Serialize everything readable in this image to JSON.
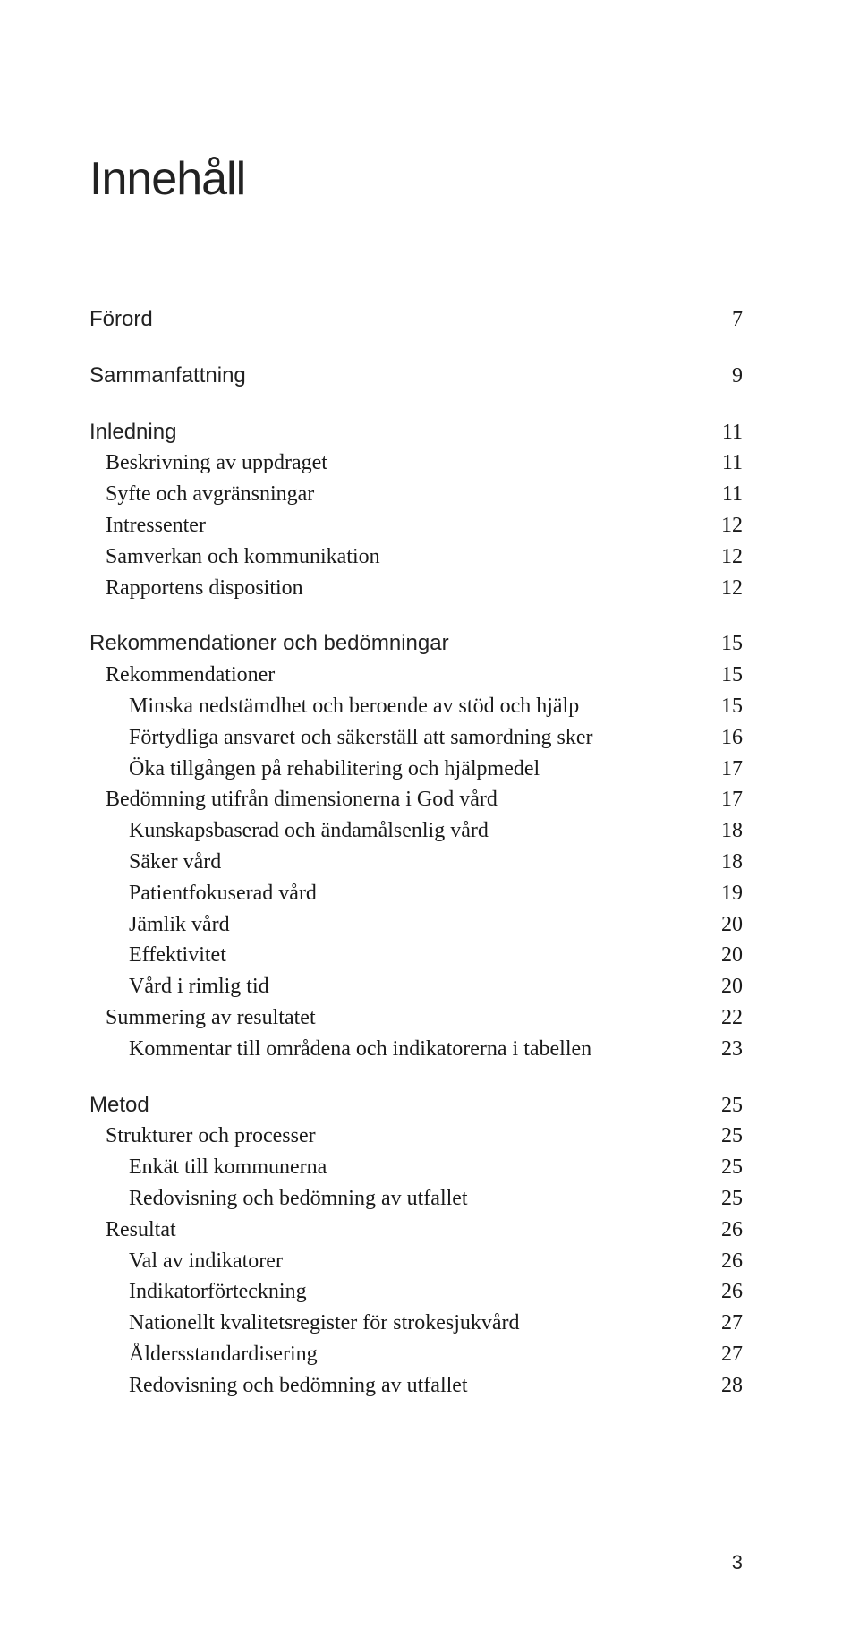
{
  "document": {
    "title": "Innehåll",
    "page_number": "3",
    "colors": {
      "background": "#ffffff",
      "text": "#1a1a1a",
      "title": "#222222"
    },
    "typography": {
      "title_font": "Verdana",
      "title_size_pt": 38,
      "section_font": "Verdana",
      "section_size_pt": 18,
      "body_font": "Georgia",
      "body_size_pt": 18
    }
  },
  "toc": [
    {
      "label": "Förord",
      "page": "7",
      "level": 0,
      "gap_before": false
    },
    {
      "label": "Sammanfattning",
      "page": "9",
      "level": 0,
      "gap_before": true
    },
    {
      "label": "Inledning",
      "page": "11",
      "level": 0,
      "gap_before": true
    },
    {
      "label": "Beskrivning av uppdraget",
      "page": "11",
      "level": 1
    },
    {
      "label": "Syfte och avgränsningar",
      "page": "11",
      "level": 1
    },
    {
      "label": "Intressenter",
      "page": "12",
      "level": 1
    },
    {
      "label": "Samverkan och kommunikation",
      "page": "12",
      "level": 1
    },
    {
      "label": "Rapportens disposition",
      "page": "12",
      "level": 1
    },
    {
      "label": "Rekommendationer och bedömningar",
      "page": "15",
      "level": 0,
      "gap_before": true
    },
    {
      "label": "Rekommendationer",
      "page": "15",
      "level": 1
    },
    {
      "label": "Minska nedstämdhet och beroende av stöd och hjälp",
      "page": "15",
      "level": 2
    },
    {
      "label": "Förtydliga ansvaret och säkerställ att samordning sker",
      "page": "16",
      "level": 2
    },
    {
      "label": "Öka tillgången på rehabilitering och hjälpmedel",
      "page": "17",
      "level": 2
    },
    {
      "label": "Bedömning utifrån dimensionerna i God vård",
      "page": "17",
      "level": 1
    },
    {
      "label": "Kunskapsbaserad och ändamålsenlig vård",
      "page": "18",
      "level": 2
    },
    {
      "label": "Säker vård",
      "page": "18",
      "level": 2
    },
    {
      "label": "Patientfokuserad vård",
      "page": "19",
      "level": 2
    },
    {
      "label": "Jämlik vård",
      "page": "20",
      "level": 2
    },
    {
      "label": "Effektivitet",
      "page": "20",
      "level": 2
    },
    {
      "label": "Vård i rimlig tid",
      "page": "20",
      "level": 2
    },
    {
      "label": "Summering av resultatet",
      "page": "22",
      "level": 1
    },
    {
      "label": "Kommentar till områdena och indikatorerna i tabellen",
      "page": "23",
      "level": 2
    },
    {
      "label": "Metod",
      "page": "25",
      "level": 0,
      "gap_before": true
    },
    {
      "label": "Strukturer och processer",
      "page": "25",
      "level": 1
    },
    {
      "label": "Enkät till kommunerna",
      "page": "25",
      "level": 2
    },
    {
      "label": "Redovisning och bedömning av utfallet",
      "page": "25",
      "level": 2
    },
    {
      "label": "Resultat",
      "page": "26",
      "level": 1
    },
    {
      "label": "Val av indikatorer",
      "page": "26",
      "level": 2
    },
    {
      "label": "Indikatorförteckning",
      "page": "26",
      "level": 2
    },
    {
      "label": "Nationellt kvalitetsregister för strokesjukvård",
      "page": "27",
      "level": 2
    },
    {
      "label": "Åldersstandardisering",
      "page": "27",
      "level": 2
    },
    {
      "label": "Redovisning och bedömning av utfallet",
      "page": "28",
      "level": 2
    }
  ]
}
